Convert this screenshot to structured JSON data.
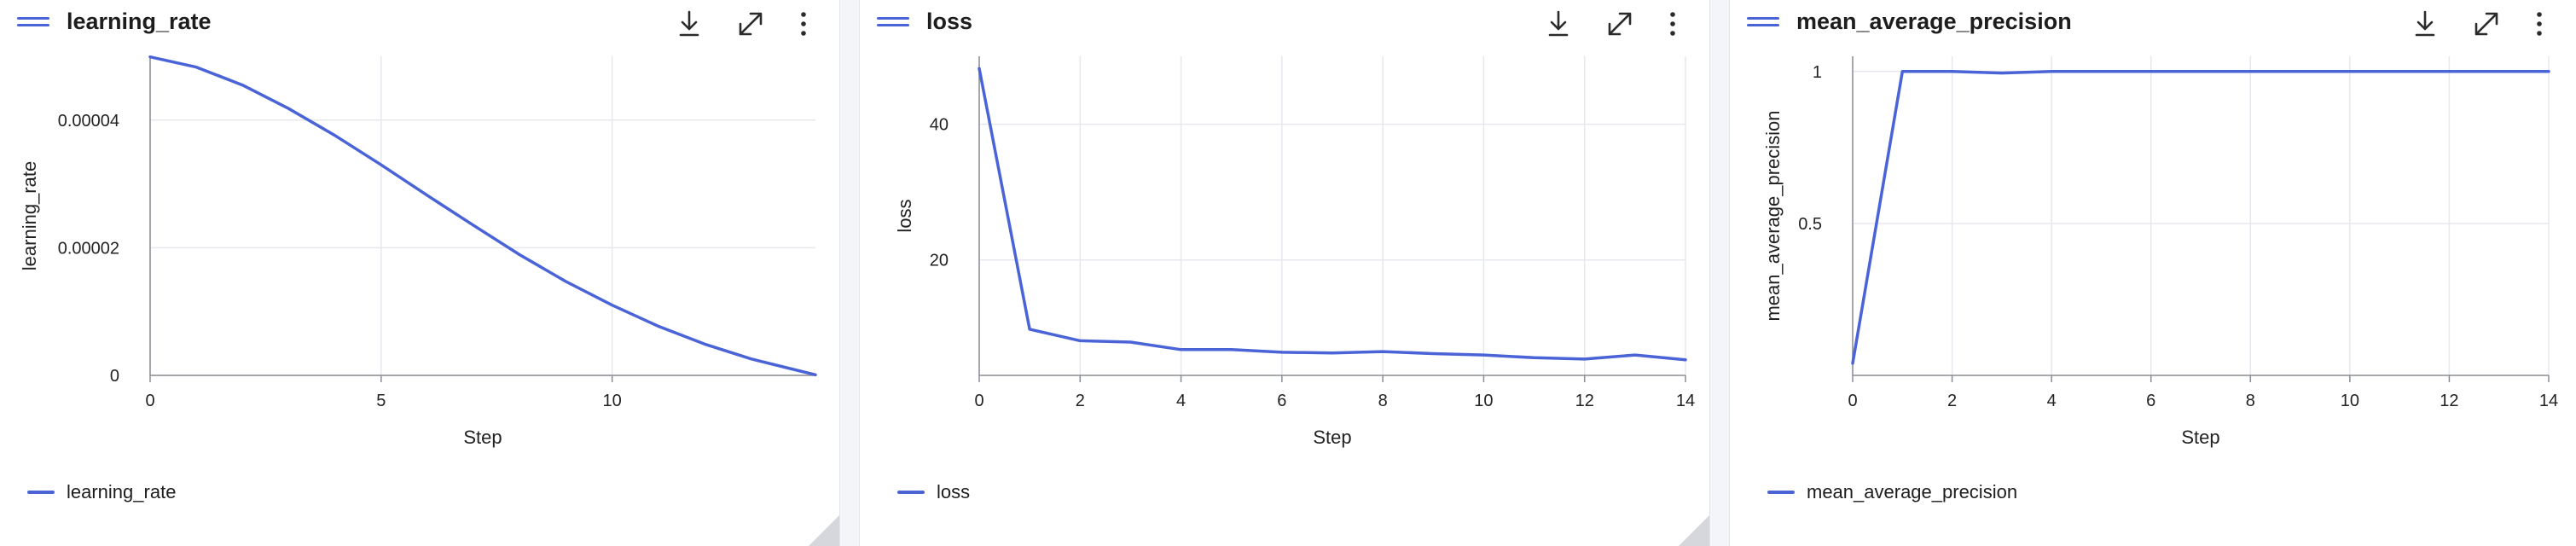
{
  "panels": [
    {
      "title": "learning_rate",
      "legend_label": "learning_rate",
      "icons": [
        "menu-icon",
        "download-icon",
        "expand-icon",
        "more-vert-icon"
      ]
    },
    {
      "title": "loss",
      "legend_label": "loss",
      "icons": [
        "menu-icon",
        "download-icon",
        "expand-icon",
        "more-vert-icon"
      ]
    },
    {
      "title": "mean_average_precision",
      "legend_label": "mean_average_precision",
      "icons": [
        "menu-icon",
        "download-icon",
        "expand-icon",
        "more-vert-icon"
      ]
    }
  ],
  "colors": {
    "series": "#4a64d8",
    "grid": "#e6e8ee",
    "axis": "#8a8d94",
    "background": "#ffffff"
  },
  "chart_data": [
    {
      "type": "line",
      "title": "learning_rate",
      "xlabel": "Step",
      "ylabel": "learning_rate",
      "xlim": [
        0,
        14.4
      ],
      "ylim": [
        0,
        5e-05
      ],
      "x_ticks": [
        0,
        5,
        10
      ],
      "x_tick_labels": [
        "0",
        "5",
        "10"
      ],
      "y_ticks": [
        0,
        2e-05,
        4e-05
      ],
      "y_tick_labels": [
        "0",
        "0.00002",
        "0.00004"
      ],
      "grid": true,
      "legend": "bottom-left",
      "series": [
        {
          "name": "learning_rate",
          "x": [
            0,
            1,
            2,
            3,
            4,
            5,
            6,
            7,
            8,
            9,
            10,
            11,
            12,
            13,
            14,
            14.4
          ],
          "values": [
            4.99e-05,
            4.83e-05,
            4.55e-05,
            4.18e-05,
            3.76e-05,
            3.3e-05,
            2.82e-05,
            2.35e-05,
            1.89e-05,
            1.47e-05,
            1.1e-05,
            7.7e-06,
            4.9e-06,
            2.6e-06,
            8e-07,
            1e-07
          ]
        }
      ]
    },
    {
      "type": "line",
      "title": "loss",
      "xlabel": "Step",
      "ylabel": "loss",
      "xlim": [
        0,
        14
      ],
      "ylim": [
        0,
        50
      ],
      "x_ticks": [
        0,
        2,
        4,
        6,
        8,
        10,
        12,
        14
      ],
      "x_tick_labels": [
        "0",
        "2",
        "4",
        "6",
        "8",
        "10",
        "12",
        "14"
      ],
      "y_ticks": [
        20,
        40
      ],
      "y_tick_labels": [
        "20",
        "40"
      ],
      "grid": true,
      "legend": "bottom-left",
      "series": [
        {
          "name": "loss",
          "x": [
            0,
            1,
            2,
            3,
            4,
            5,
            6,
            7,
            8,
            9,
            10,
            11,
            12,
            13,
            14
          ],
          "values": [
            48.2,
            9.8,
            8.1,
            7.9,
            6.8,
            6.8,
            6.4,
            6.3,
            6.5,
            6.2,
            6.0,
            5.6,
            5.4,
            6.0,
            5.3
          ]
        }
      ]
    },
    {
      "type": "line",
      "title": "mean_average_precision",
      "xlabel": "Step",
      "ylabel": "mean_average_precision",
      "xlim": [
        0,
        14
      ],
      "ylim": [
        0,
        1
      ],
      "x_ticks": [
        0,
        2,
        4,
        6,
        8,
        10,
        12,
        14
      ],
      "x_tick_labels": [
        "0",
        "2",
        "4",
        "6",
        "8",
        "10",
        "12",
        "14"
      ],
      "y_ticks": [
        0.5,
        1
      ],
      "y_tick_labels": [
        "0.5",
        "1"
      ],
      "grid": true,
      "legend": "bottom-left",
      "series": [
        {
          "name": "mean_average_precision",
          "x": [
            0,
            1,
            2,
            3,
            4,
            5,
            6,
            7,
            8,
            9,
            10,
            11,
            12,
            13,
            14
          ],
          "values": [
            0.04,
            1.0,
            1.0,
            0.995,
            1.0,
            1.0,
            1.0,
            1.0,
            1.0,
            1.0,
            1.0,
            1.0,
            1.0,
            1.0,
            1.0
          ]
        }
      ]
    }
  ]
}
